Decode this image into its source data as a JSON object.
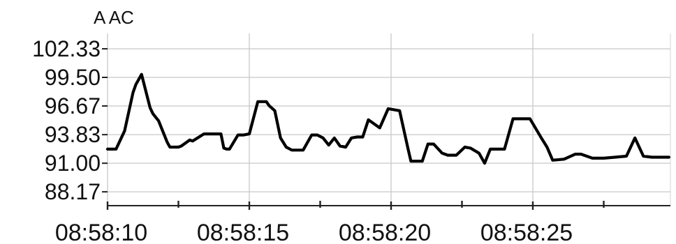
{
  "chart_data": {
    "type": "line",
    "ylabel": "A AC",
    "xlabel": "",
    "title": "",
    "ylim": [
      86.9,
      104.2
    ],
    "yticks": [
      "102.33",
      "99.50",
      "96.67",
      "93.83",
      "91.00",
      "88.17"
    ],
    "xticks": [
      "08:58:10",
      "08:58:15",
      "08:58:20",
      "08:58:25"
    ],
    "xlim_seconds": [
      0,
      19.8
    ],
    "grid": true,
    "line_color": "#000000",
    "series": [
      {
        "x": [
          0,
          0.3,
          0.6,
          0.9,
          1.0,
          1.2,
          1.5,
          1.6,
          1.8,
          2.1,
          2.2,
          2.5,
          2.6,
          2.9,
          3.0,
          3.4,
          3.5,
          4.0,
          4.1,
          4.2,
          4.3,
          4.6,
          4.8,
          5.0,
          5.3,
          5.6,
          5.7,
          5.9,
          6.1,
          6.3,
          6.5,
          6.7,
          6.9,
          7.2,
          7.4,
          7.6,
          7.8,
          8.0,
          8.2,
          8.4,
          8.6,
          8.8,
          9.0,
          9.2,
          9.6,
          9.9,
          10.3,
          10.6,
          10.7,
          11.1,
          11.3,
          11.5,
          11.8,
          12.0,
          12.3,
          12.6,
          12.8,
          13.1,
          13.3,
          13.5,
          14.0,
          14.3,
          14.5,
          14.9,
          15.3,
          15.5,
          15.7,
          16.1,
          16.5,
          16.7,
          17.1,
          17.5,
          17.9,
          18.3,
          18.6,
          18.9,
          19.2,
          19.4,
          19.6,
          19.8
        ],
        "values": [
          92.4,
          92.4,
          94.2,
          98.0,
          98.8,
          99.8,
          96.5,
          95.9,
          95.2,
          93.1,
          92.6,
          92.6,
          92.7,
          93.3,
          93.2,
          93.9,
          93.9,
          93.9,
          92.5,
          92.4,
          92.4,
          93.8,
          93.8,
          93.9,
          97.1,
          97.1,
          96.7,
          96.2,
          93.5,
          92.6,
          92.3,
          92.3,
          92.3,
          93.8,
          93.8,
          93.5,
          92.8,
          93.5,
          92.7,
          92.6,
          93.5,
          93.6,
          93.6,
          95.3,
          94.5,
          96.4,
          96.2,
          92.4,
          91.2,
          91.2,
          92.9,
          92.9,
          92.0,
          91.8,
          91.8,
          92.6,
          92.5,
          92.0,
          91.0,
          92.4,
          92.4,
          95.4,
          95.4,
          95.4,
          93.5,
          92.6,
          91.3,
          91.4,
          91.9,
          91.9,
          91.5,
          91.5,
          91.6,
          91.7,
          93.5,
          91.7,
          91.6,
          91.6,
          91.6,
          91.6
        ]
      }
    ]
  }
}
